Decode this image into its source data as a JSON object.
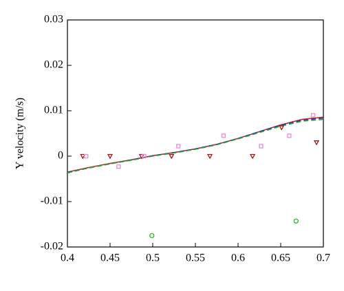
{
  "chart_data": {
    "type": "line",
    "ylabel": "Y velocity (m/s)",
    "xlim": [
      0.4,
      0.7
    ],
    "xticks": [
      0.4,
      0.45,
      0.5,
      0.55,
      0.6,
      0.65,
      0.7
    ],
    "ylim": [
      -0.02,
      0.03
    ],
    "yticks": [
      -0.02,
      -0.01,
      0,
      0.01,
      0.02,
      0.03
    ],
    "series": [
      {
        "color": "#cc2222",
        "style": "solid",
        "x": [
          0.4,
          0.425,
          0.45,
          0.475,
          0.5,
          0.525,
          0.55,
          0.575,
          0.6,
          0.625,
          0.65,
          0.675,
          0.7
        ],
        "values": [
          -0.0035,
          -0.0025,
          -0.0016,
          -0.0008,
          0.0001,
          0.0008,
          0.0016,
          0.0026,
          0.0039,
          0.0054,
          0.0069,
          0.0081,
          0.0086
        ]
      },
      {
        "color": "#2233cc",
        "style": "dashed",
        "x": [
          0.4,
          0.425,
          0.45,
          0.475,
          0.5,
          0.525,
          0.55,
          0.575,
          0.6,
          0.625,
          0.65,
          0.675,
          0.7
        ],
        "values": [
          -0.0036,
          -0.0026,
          -0.0017,
          -0.0008,
          0.0001,
          0.0008,
          0.0016,
          0.0026,
          0.0039,
          0.0054,
          0.0068,
          0.0079,
          0.0084
        ]
      },
      {
        "color": "#22aa33",
        "style": "dashed",
        "x": [
          0.4,
          0.425,
          0.45,
          0.475,
          0.5,
          0.525,
          0.55,
          0.575,
          0.6,
          0.625,
          0.65,
          0.675,
          0.7
        ],
        "values": [
          -0.0037,
          -0.0026,
          -0.0017,
          -0.0009,
          0,
          0.0007,
          0.0015,
          0.0025,
          0.0038,
          0.0052,
          0.0066,
          0.0077,
          0.0081
        ]
      },
      {
        "color": "#aa1111",
        "marker": "triangle-down",
        "x": [
          0.418,
          0.45,
          0.487,
          0.522,
          0.567,
          0.617,
          0.651,
          0.692
        ],
        "values": [
          0,
          0,
          0,
          0,
          0,
          0,
          0.0063,
          0.003
        ]
      },
      {
        "color": "#ee88dd",
        "marker": "square",
        "x": [
          0.422,
          0.46,
          0.49,
          0.53,
          0.583,
          0.627,
          0.66,
          0.688
        ],
        "values": [
          0,
          -0.0023,
          0,
          0.0022,
          0.0045,
          0.0022,
          0.0045,
          0.009
        ]
      },
      {
        "color": "#22bb22",
        "marker": "circle",
        "x": [
          0.499,
          0.668
        ],
        "values": [
          -0.0175,
          -0.0143
        ]
      }
    ]
  }
}
